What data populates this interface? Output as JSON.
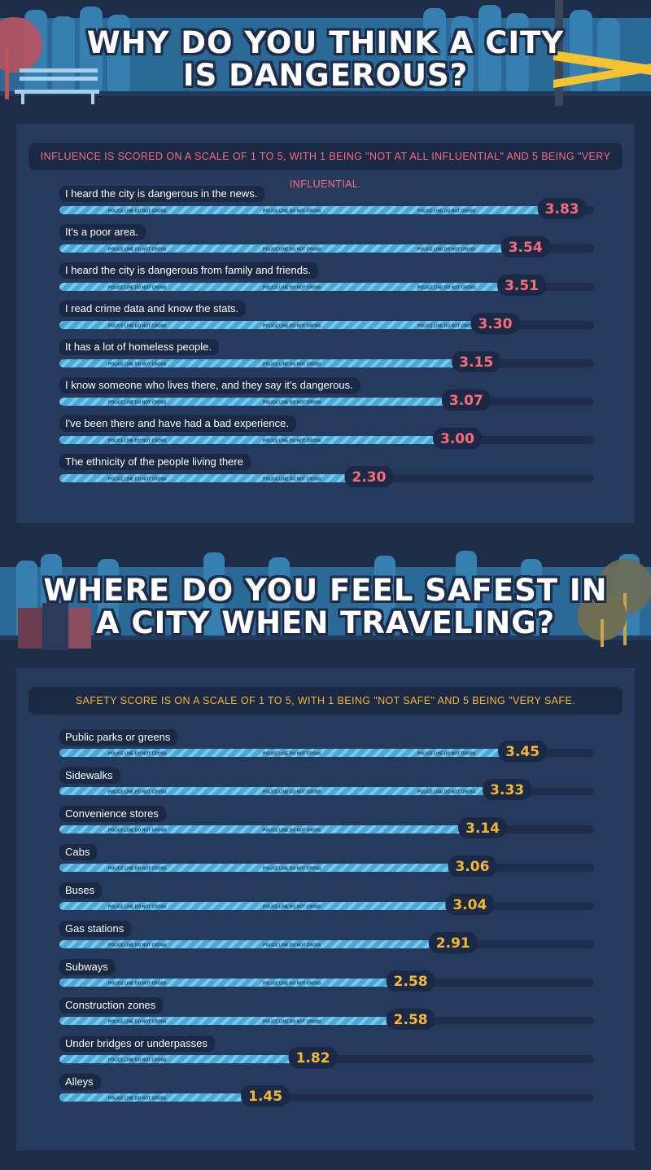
{
  "section1": {
    "title_line1": "WHY DO YOU THINK A CITY",
    "title_line2": "IS DANGEROUS?",
    "subtitle": "INFLUENCE IS SCORED ON A SCALE OF 1 TO 5, WITH 1 BEING \"NOT AT ALL INFLUENTIAL\" AND 5 BEING \"VERY INFLUENTIAL.",
    "accent": "#ff6b78"
  },
  "section2": {
    "title_line1": "WHERE DO YOU FEEL SAFEST IN",
    "title_line2": "A CITY WHEN TRAVELING?",
    "subtitle": "SAFETY SCORE IS ON A SCALE OF 1 TO 5, WITH 1 BEING \"NOT SAFE\" AND 5 BEING \"VERY SAFE.",
    "accent": "#f7b733"
  },
  "tape_text": "POLICE LINE DO NOT CROSS",
  "colors": {
    "background": "#1d2c48",
    "panel": "#253a5c",
    "bar_fill": "#4aa8d6",
    "bar_stripe": "#7ac8ec",
    "fence": "#2d6f9c"
  },
  "chart_data": [
    {
      "type": "bar",
      "orientation": "horizontal",
      "xlim": [
        0,
        5
      ],
      "categories": [
        "I heard the city is dangerous in the news.",
        "It's a poor area.",
        "I heard the city is dangerous from family and friends.",
        "I read crime data and know the stats.",
        "It has a lot of homeless people.",
        "I know someone who lives there, and they say it's dangerous.",
        "I've been there and have had a bad experience.",
        "The ethnicity of the people living there"
      ],
      "values": [
        3.83,
        3.54,
        3.51,
        3.3,
        3.15,
        3.07,
        3.0,
        2.3
      ],
      "value_labels": [
        "3.83",
        "3.54",
        "3.51",
        "3.30",
        "3.15",
        "3.07",
        "3.00",
        "2.30"
      ]
    },
    {
      "type": "bar",
      "orientation": "horizontal",
      "xlim": [
        0,
        5
      ],
      "categories": [
        "Public parks or greens",
        "Sidewalks",
        "Convenience stores",
        "Cabs",
        "Buses",
        "Gas stations",
        "Subways",
        "Construction zones",
        "Under bridges or underpasses",
        "Alleys"
      ],
      "values": [
        3.45,
        3.33,
        3.14,
        3.06,
        3.04,
        2.91,
        2.58,
        2.58,
        1.82,
        1.45
      ],
      "value_labels": [
        "3.45",
        "3.33",
        "3.14",
        "3.06",
        "3.04",
        "2.91",
        "2.58",
        "2.58",
        "1.82",
        "1.45"
      ]
    }
  ]
}
